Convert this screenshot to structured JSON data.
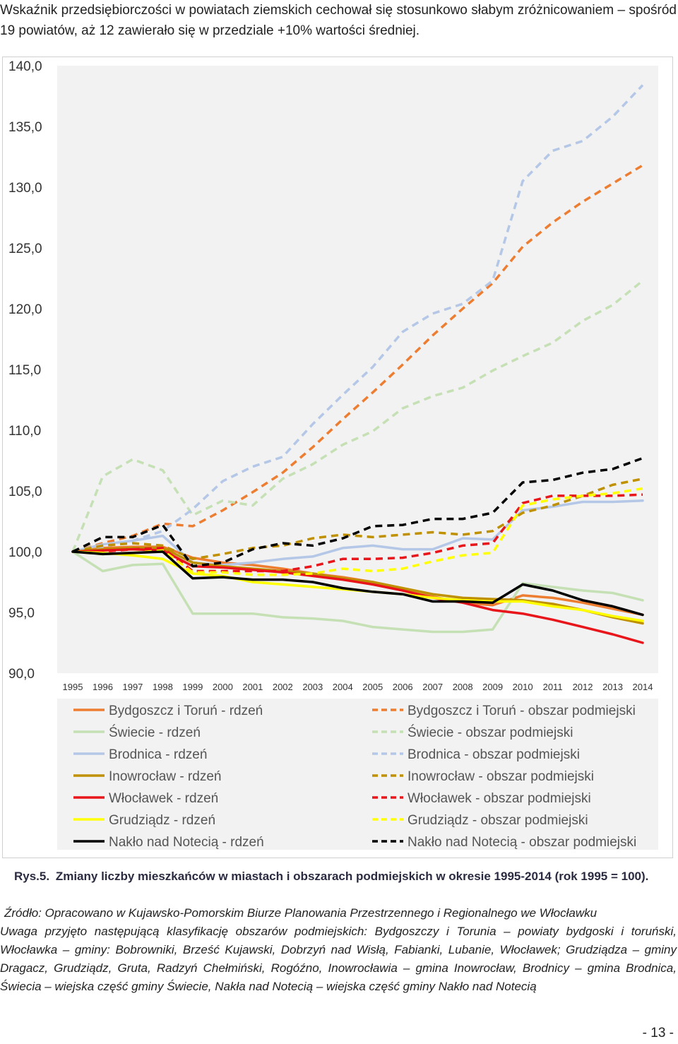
{
  "intro_text": "Wskaźnik przedsiębiorczości w powiatach ziemskich cechował się stosunkowo słabym zróżnicowaniem – spośród 19 powiatów, aż 12 zawierało się w przedziale +10% wartości średniej.",
  "caption": {
    "number": "Rys.5.",
    "text": "Zmiany liczby mieszkańców w miastach i obszarach podmiejskich w okresie 1995-2014 (rok 1995 = 100)."
  },
  "source": {
    "line1": "Źródło: Opracowano w Kujawsko-Pomorskim Biurze Planowania Przestrzennego i Regionalnego we Włocławku",
    "note": "Uwaga przyjęto następującą klasyfikację obszarów podmiejskich: Bydgoszczy i Torunia – powiaty bydgoski i toruński, Włocławka – gminy: Bobrowniki, Brześć Kujawski, Dobrzyń nad Wisłą, Fabianki, Lubanie, Włocławek; Grudziądza – gminy Dragacz, Grudziądz, Gruta, Radzyń Chełmiński, Rogóźno, Inowrocławia – gmina Inowrocław, Brodnicy – gmina Brodnica, Świecia – wiejska część gminy Świecie, Nakła nad Notecią – wiejska część gminy Nakło nad Notecią"
  },
  "page_number": "- 13 -",
  "chart_data": {
    "type": "line",
    "title": "",
    "xlabel": "",
    "ylabel": "",
    "ylim": [
      90,
      140
    ],
    "y_ticks": [
      "90,0",
      "95,0",
      "100,0",
      "105,0",
      "110,0",
      "115,0",
      "120,0",
      "125,0",
      "130,0",
      "135,0",
      "140,0"
    ],
    "y_tick_values": [
      90,
      95,
      100,
      105,
      110,
      115,
      120,
      125,
      130,
      135,
      140
    ],
    "categories": [
      "1995",
      "1996",
      "1997",
      "1998",
      "1999",
      "2000",
      "2001",
      "2002",
      "2003",
      "2004",
      "2005",
      "2006",
      "2007",
      "2008",
      "2009",
      "2010",
      "2011",
      "2012",
      "2013",
      "2014"
    ],
    "legend_position": "bottom",
    "series": [
      {
        "name": "Bydgoszcz i Toruń - rdzeń",
        "color": "#ED7D31",
        "dash": "solid",
        "values": [
          100,
          100.3,
          100.4,
          100.4,
          99.5,
          99.1,
          98.9,
          98.6,
          98.2,
          97.9,
          97.5,
          96.9,
          96.3,
          95.8,
          95.6,
          96.4,
          96.2,
          95.8,
          95.3,
          94.8
        ]
      },
      {
        "name": "Bydgoszcz i Toruń - obszar podmiejski",
        "color": "#ED7D31",
        "dash": "dashed",
        "values": [
          100,
          100.7,
          101.3,
          102.3,
          102.1,
          103.4,
          104.9,
          106.5,
          108.6,
          110.9,
          113.1,
          115.4,
          117.8,
          120.0,
          122.1,
          125.1,
          127.1,
          128.8,
          130.3,
          131.8
        ]
      },
      {
        "name": "Świecie - rdzeń",
        "color": "#C5E0B4",
        "dash": "solid",
        "values": [
          100,
          98.4,
          98.9,
          99.0,
          94.9,
          94.9,
          94.9,
          94.6,
          94.5,
          94.3,
          93.8,
          93.6,
          93.4,
          93.4,
          93.6,
          97.4,
          97.1,
          96.8,
          96.6,
          96.0
        ]
      },
      {
        "name": "Świecie - obszar podmiejski",
        "color": "#C5E0B4",
        "dash": "dashed",
        "values": [
          100,
          106.2,
          107.6,
          106.7,
          103.0,
          104.2,
          103.8,
          106.0,
          107.2,
          108.8,
          109.9,
          111.8,
          112.8,
          113.5,
          114.9,
          116.1,
          117.2,
          119.0,
          120.3,
          122.3
        ]
      },
      {
        "name": "Brodnica - rdzeń",
        "color": "#B4C7E7",
        "dash": "solid",
        "values": [
          100,
          100.6,
          100.9,
          101.3,
          99.1,
          98.9,
          99.1,
          99.4,
          99.6,
          100.3,
          100.5,
          100.2,
          100.2,
          101.1,
          101.0,
          103.4,
          103.7,
          104.1,
          104.1,
          104.2
        ]
      },
      {
        "name": "Brodnica - obszar podmiejski",
        "color": "#B4C7E7",
        "dash": "dashed",
        "values": [
          100,
          100.4,
          100.9,
          101.7,
          103.5,
          105.8,
          107.0,
          107.8,
          110.5,
          112.9,
          115.2,
          118.1,
          119.6,
          120.4,
          122.3,
          130.5,
          133.0,
          133.8,
          135.8,
          138.4
        ]
      },
      {
        "name": "Inowrocław - rdzeń",
        "color": "#BF9000",
        "dash": "solid",
        "values": [
          100,
          100.2,
          100.3,
          100.3,
          99.1,
          98.8,
          98.6,
          98.4,
          98.2,
          97.8,
          97.5,
          97.0,
          96.5,
          96.2,
          96.1,
          96.0,
          95.7,
          95.2,
          94.6,
          94.1
        ]
      },
      {
        "name": "Inowrocław - obszar podmiejski",
        "color": "#BF9000",
        "dash": "dashed",
        "values": [
          100,
          100.5,
          100.7,
          100.5,
          99.4,
          99.8,
          100.3,
          100.5,
          101.1,
          101.4,
          101.2,
          101.4,
          101.6,
          101.4,
          101.7,
          103.2,
          103.8,
          104.6,
          105.5,
          106.0
        ]
      },
      {
        "name": "Włocławek - rdzeń",
        "color": "#E8151B",
        "dash": "solid",
        "values": [
          100,
          100.1,
          100.2,
          100.1,
          98.8,
          98.7,
          98.5,
          98.3,
          98.0,
          97.7,
          97.3,
          96.8,
          96.2,
          95.8,
          95.2,
          94.9,
          94.4,
          93.8,
          93.2,
          92.5
        ]
      },
      {
        "name": "Włocławek - obszar podmiejski",
        "color": "#E8151B",
        "dash": "dashed",
        "values": [
          100,
          100.0,
          100.2,
          100.3,
          98.4,
          98.4,
          98.4,
          98.4,
          98.8,
          99.4,
          99.4,
          99.5,
          99.9,
          100.5,
          100.7,
          104.0,
          104.6,
          104.6,
          104.6,
          104.7
        ]
      },
      {
        "name": "Grudziądz - rdzeń",
        "color": "#FFFF00",
        "dash": "solid",
        "values": [
          100,
          99.9,
          99.7,
          99.4,
          98.2,
          98.0,
          97.5,
          97.3,
          97.1,
          96.9,
          96.7,
          96.5,
          96.2,
          96.0,
          95.9,
          95.9,
          95.5,
          95.2,
          94.7,
          94.3
        ]
      },
      {
        "name": "Grudziądz - obszar podmiejski",
        "color": "#FFFF00",
        "dash": "dashed",
        "values": [
          100,
          99.8,
          99.9,
          100.1,
          98.3,
          98.3,
          98.1,
          98.1,
          98.2,
          98.6,
          98.4,
          98.6,
          99.2,
          99.7,
          99.9,
          103.8,
          104.3,
          104.6,
          104.8,
          105.2
        ]
      },
      {
        "name": "Nakło nad Notecią - rdzeń",
        "color": "#000000",
        "dash": "solid",
        "values": [
          100,
          99.8,
          99.9,
          100.0,
          97.8,
          97.9,
          97.7,
          97.7,
          97.5,
          97.0,
          96.7,
          96.5,
          95.9,
          95.9,
          95.8,
          97.3,
          96.8,
          96.0,
          95.5,
          94.8
        ]
      },
      {
        "name": "Nakło nad Notecią - obszar podmiejski",
        "color": "#000000",
        "dash": "dashed",
        "values": [
          100,
          101.2,
          101.2,
          102.2,
          98.8,
          99.1,
          100.2,
          100.7,
          100.5,
          101.1,
          102.1,
          102.2,
          102.7,
          102.7,
          103.2,
          105.7,
          105.9,
          106.5,
          106.8,
          107.7
        ]
      }
    ]
  }
}
